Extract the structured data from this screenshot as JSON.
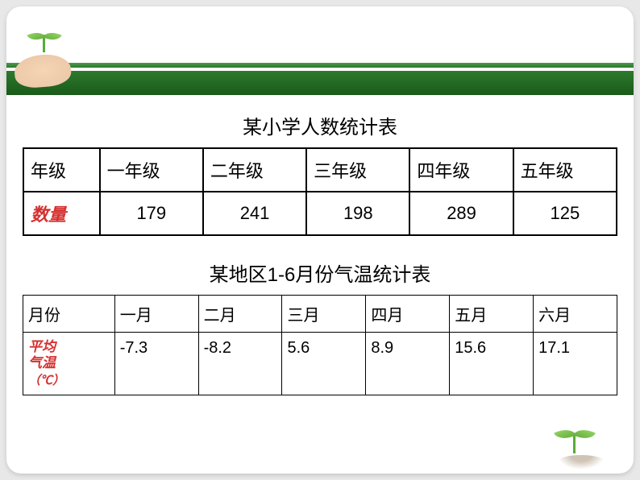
{
  "table1": {
    "title": "某小学人数统计表",
    "row_header_label": "年级",
    "row_data_label": "数量",
    "columns": [
      "一年级",
      "二年级",
      "三年级",
      "四年级",
      "五年级"
    ],
    "values": [
      "179",
      "241",
      "198",
      "289",
      "125"
    ]
  },
  "table2": {
    "title": "某地区1-6月份气温统计表",
    "row_header_label": "月份",
    "row_data_label": "平均\n气温",
    "row_data_unit": "（℃）",
    "columns": [
      "一月",
      "二月",
      "三月",
      "四月",
      "五月",
      "六月"
    ],
    "values": [
      "-7.3",
      "-8.2",
      "5.6",
      "8.9",
      "15.6",
      "17.1"
    ]
  },
  "styling": {
    "background_color": "#e8e8e8",
    "slide_background": "#ffffff",
    "header_green_dark": "#1a5a1a",
    "header_green_light": "#4a9a4a",
    "leaf_color": "#8ed060",
    "data_label_color": "#d63030",
    "border_color": "#000000",
    "title_fontsize": 24,
    "table1_cell_fontsize": 22,
    "table2_cell_fontsize": 20,
    "table2_label_fontsize": 17
  }
}
